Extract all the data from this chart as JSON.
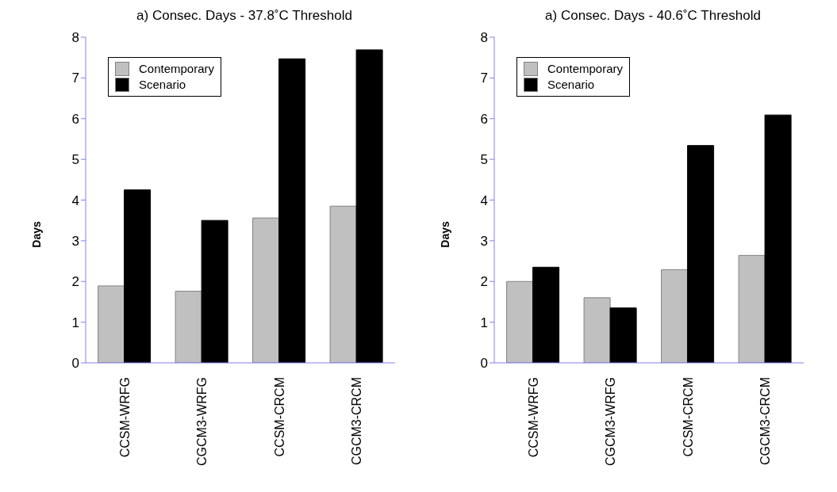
{
  "chart_data": [
    {
      "type": "bar",
      "title": "a)  Consec. Days - 37.8˚C Threshold",
      "ylabel": "Days",
      "categories": [
        "CCSM-WRFG",
        "CGCM3-WRFG",
        "CCSM-CRCM",
        "CGCM3-CRCM"
      ],
      "series": [
        {
          "name": "Contemporary",
          "color": "#c0c0c0",
          "values": [
            1.89,
            1.76,
            3.56,
            3.85
          ]
        },
        {
          "name": "Scenario",
          "color": "#000000",
          "values": [
            4.25,
            3.5,
            7.47,
            7.69
          ]
        }
      ],
      "ylim": [
        0,
        8
      ],
      "yticks": [
        0,
        1,
        2,
        3,
        4,
        5,
        6,
        7,
        8
      ],
      "grid": false,
      "legend": "top left"
    },
    {
      "type": "bar",
      "title": "a)  Consec. Days - 40.6˚C Threshold",
      "ylabel": "Days",
      "categories": [
        "CCSM-WRFG",
        "CGCM3-WRFG",
        "CCSM-CRCM",
        "CGCM3-CRCM"
      ],
      "series": [
        {
          "name": "Contemporary",
          "color": "#c0c0c0",
          "values": [
            2.0,
            1.6,
            2.29,
            2.64
          ]
        },
        {
          "name": "Scenario",
          "color": "#000000",
          "values": [
            2.35,
            1.35,
            5.34,
            6.09
          ]
        }
      ],
      "ylim": [
        0,
        8
      ],
      "yticks": [
        0,
        1,
        2,
        3,
        4,
        5,
        6,
        7,
        8
      ],
      "grid": false,
      "legend": "top left"
    }
  ]
}
